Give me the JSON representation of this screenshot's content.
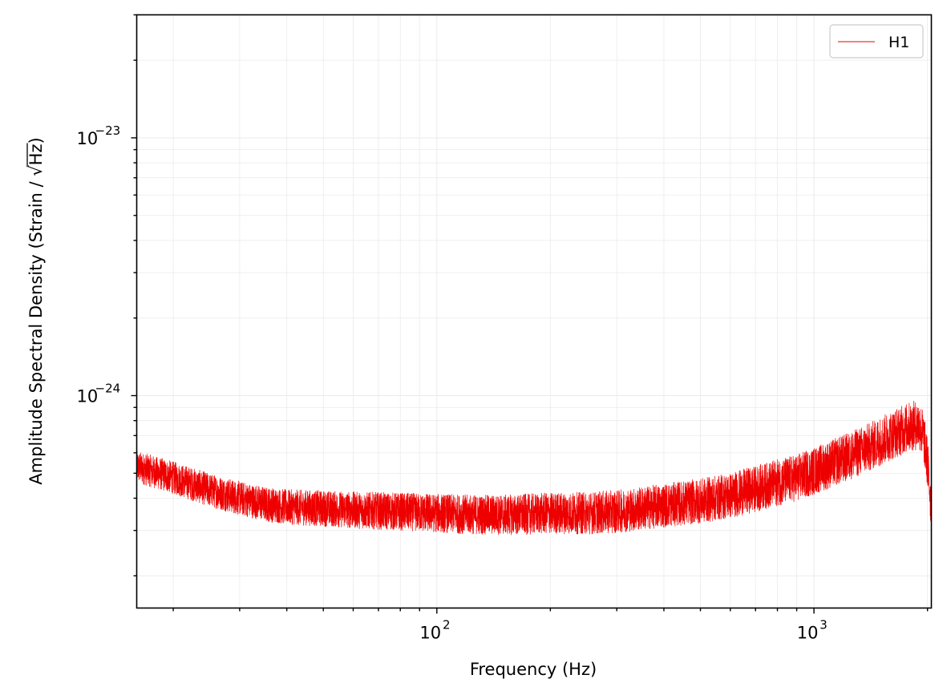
{
  "chart_data": {
    "type": "line",
    "title": "",
    "xlabel": "Frequency (Hz)",
    "ylabel_prefix": "Amplitude Spectral Density (Strain / ",
    "ylabel_sqrt": "√",
    "ylabel_unit": "Hz",
    "ylabel_suffix": ")",
    "xscale": "log",
    "yscale": "log",
    "xlim": [
      16,
      2048
    ],
    "ylim": [
      1.5e-25,
      3e-23
    ],
    "grid": true,
    "legend_position": "top-right",
    "x_ticks": [
      {
        "base": "10",
        "exp": "2",
        "value": 100
      },
      {
        "base": "10",
        "exp": "3",
        "value": 1000
      }
    ],
    "y_ticks": [
      {
        "base": "10",
        "exp": "−24",
        "value": 1e-24
      },
      {
        "base": "10",
        "exp": "−23",
        "value": 1e-23
      }
    ],
    "colors": {
      "H1": "#ee0000",
      "grid": "#ebebeb",
      "axes": "#000000"
    },
    "series": [
      {
        "name": "H1",
        "color": "#ee0000",
        "x": [
          16,
          20,
          25,
          30,
          35,
          40,
          50,
          60,
          80,
          100,
          130,
          160,
          200,
          220,
          250,
          300,
          350,
          400,
          500,
          600,
          700,
          800,
          900,
          1000,
          1200,
          1400,
          1600,
          1800,
          1900,
          1950,
          2000,
          2048
        ],
        "y": [
          5.3e-25,
          4.8e-25,
          4.3e-25,
          4e-25,
          3.8e-25,
          3.7e-25,
          3.65e-25,
          3.6e-25,
          3.55e-25,
          3.5e-25,
          3.45e-25,
          3.45e-25,
          3.5e-25,
          3.5e-25,
          3.5e-25,
          3.55e-25,
          3.65e-25,
          3.75e-25,
          3.9e-25,
          4.1e-25,
          4.35e-25,
          4.6e-25,
          4.8e-25,
          5.1e-25,
          5.7e-25,
          6.3e-25,
          7e-25,
          7.6e-25,
          7.7e-25,
          7e-25,
          5.5e-25,
          3.7e-25
        ],
        "noise_spread": 0.07
      }
    ]
  }
}
